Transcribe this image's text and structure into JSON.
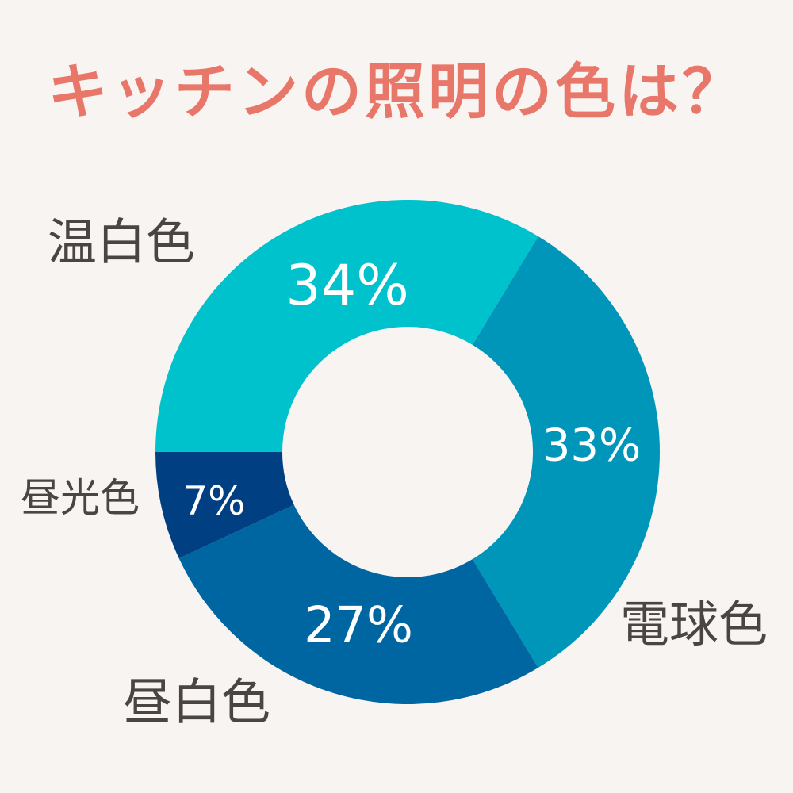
{
  "chart_data": {
    "type": "pie",
    "title": "キッチンの照明の色は？",
    "categories": [
      "温白色",
      "電球色",
      "昼白色",
      "昼光色"
    ],
    "values": [
      34,
      33,
      27,
      7
    ],
    "value_labels": [
      "34%",
      "33%",
      "27%",
      "7%"
    ],
    "colors": [
      "#00c2cc",
      "#0096ba",
      "#0066a2",
      "#003f82"
    ],
    "hole": "donut"
  },
  "colors": {
    "title": "#e8776a",
    "label_text": "#4a4542",
    "value_text": "#ffffff",
    "background": "#f8f4f2"
  }
}
